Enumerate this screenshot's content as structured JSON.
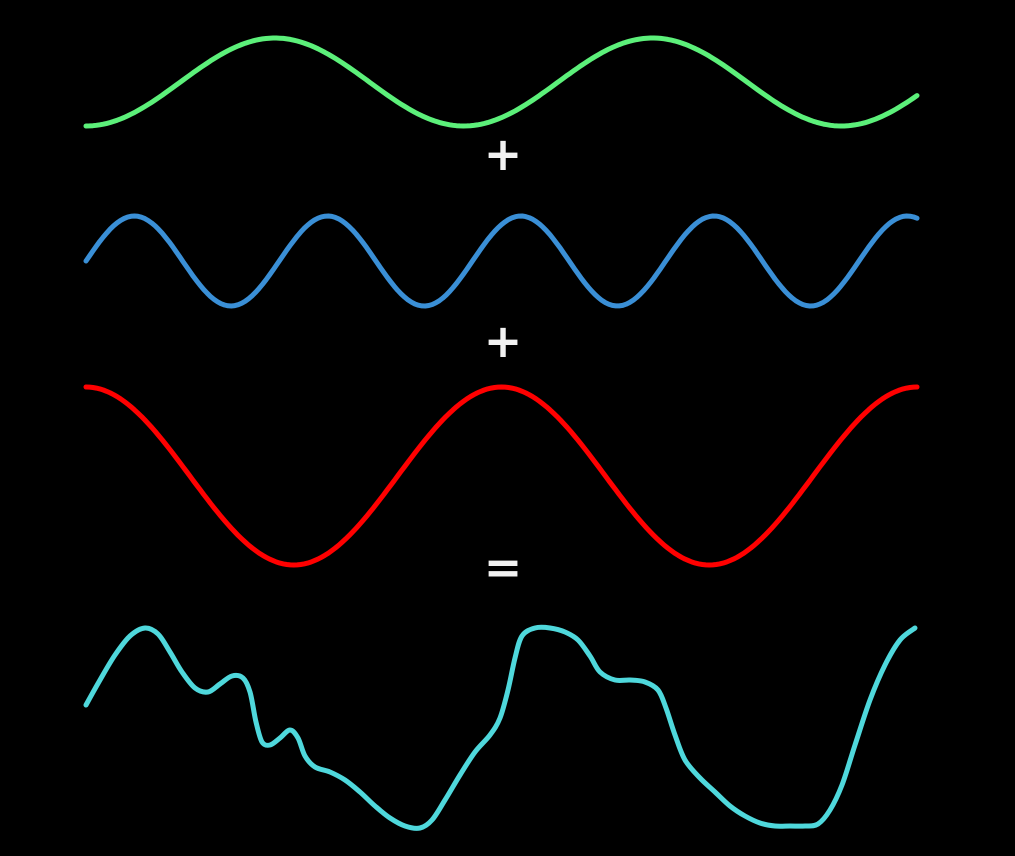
{
  "diagram": {
    "background_color": "#000000",
    "operators": {
      "plus_1": "+",
      "plus_2": "+",
      "equals": "="
    },
    "waves": [
      {
        "id": "green-sine",
        "color": "#5cf07a",
        "cycles": 2.2,
        "amplitude": 1.0,
        "phase_deg": -90
      },
      {
        "id": "blue-sine",
        "color": "#3a8fd6",
        "cycles": 4.3,
        "amplitude": 1.0,
        "phase_deg": 0
      },
      {
        "id": "red-sine",
        "color": "#ff0000",
        "cycles": 2.0,
        "amplitude": 1.0,
        "phase_deg": 90
      },
      {
        "id": "cyan-sum",
        "color": "#4fd8dc",
        "kind": "sum"
      }
    ]
  }
}
